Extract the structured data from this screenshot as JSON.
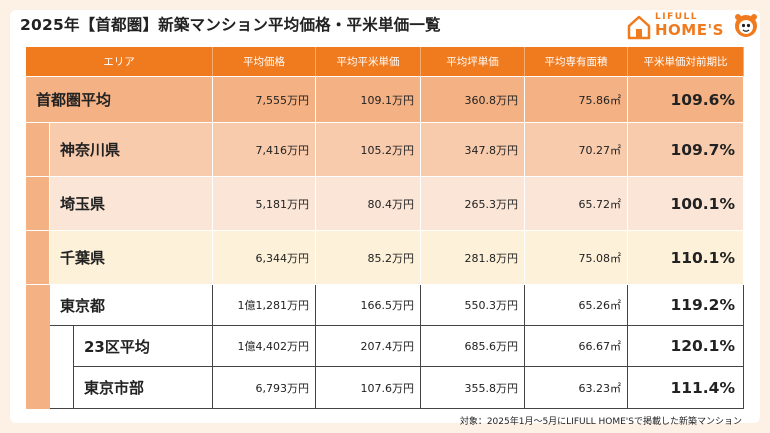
{
  "title": "2025年【首都圏】新築マンション平均価格・平米単価一覧",
  "logo": {
    "top": "LIFULL",
    "main": "HOME'S"
  },
  "headers": [
    "エリア",
    "平均価格",
    "平均平米単価",
    "平均坪単価",
    "平均専有面積",
    "平米単価対前期比"
  ],
  "rows": [
    {
      "area": "首都圏平均",
      "price": "7,555万円",
      "sqm": "109.1万円",
      "tsubo": "360.8万円",
      "size": "75.86㎡",
      "yoy": "109.6%"
    },
    {
      "area": "神奈川県",
      "price": "7,416万円",
      "sqm": "105.2万円",
      "tsubo": "347.8万円",
      "size": "70.27㎡",
      "yoy": "109.7%"
    },
    {
      "area": "埼玉県",
      "price": "5,181万円",
      "sqm": "80.4万円",
      "tsubo": "265.3万円",
      "size": "65.72㎡",
      "yoy": "100.1%"
    },
    {
      "area": "千葉県",
      "price": "6,344万円",
      "sqm": "85.2万円",
      "tsubo": "281.8万円",
      "size": "75.08㎡",
      "yoy": "110.1%"
    },
    {
      "area": "東京都",
      "price": "1億1,281万円",
      "sqm": "166.5万円",
      "tsubo": "550.3万円",
      "size": "65.26㎡",
      "yoy": "119.2%"
    },
    {
      "area": "23区平均",
      "price": "1億4,402万円",
      "sqm": "207.4万円",
      "tsubo": "685.6万円",
      "size": "66.67㎡",
      "yoy": "120.1%"
    },
    {
      "area": "東京市部",
      "price": "6,793万円",
      "sqm": "107.6万円",
      "tsubo": "355.8万円",
      "size": "63.23㎡",
      "yoy": "111.4%"
    }
  ],
  "footnote": "対象：2025年1月～5月にLIFULL HOME'Sで掲載した新築マンション",
  "colors": {
    "header": "#f07a1e",
    "avg": "#f4b183",
    "kanagawa": "#f8cbad",
    "saitama": "#fbe5d6",
    "chiba": "#fdf2d9"
  }
}
